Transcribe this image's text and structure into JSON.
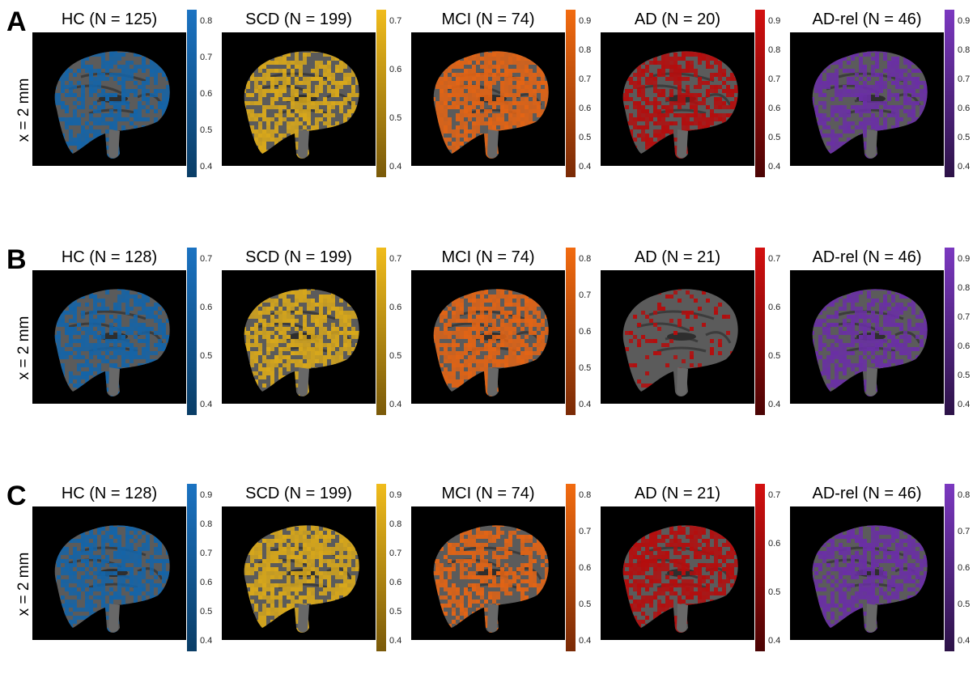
{
  "y_axis_label": "x = 2 mm",
  "rows": [
    {
      "letter": "A",
      "panels": [
        {
          "title": "HC (N = 125)",
          "color": "#1464a8",
          "cbar": [
            "#0a3d66",
            "#1b73c2"
          ],
          "ticks": [
            "0.8",
            "0.7",
            "0.6",
            "0.5",
            "0.4"
          ],
          "density": 0.55
        },
        {
          "title": "SCD (N = 199)",
          "color": "#d9a81a",
          "cbar": [
            "#7a5a0a",
            "#f0bc1c"
          ],
          "ticks": [
            "0.7",
            "0.6",
            "0.5",
            "0.4"
          ],
          "density": 0.6
        },
        {
          "title": "MCI (N = 74)",
          "color": "#e36414",
          "cbar": [
            "#7a2a06",
            "#f26b10"
          ],
          "ticks": [
            "0.9",
            "0.8",
            "0.7",
            "0.6",
            "0.5",
            "0.4"
          ],
          "density": 0.75
        },
        {
          "title": "AD (N = 20)",
          "color": "#b50d0d",
          "cbar": [
            "#4a0404",
            "#d41010"
          ],
          "ticks": [
            "0.9",
            "0.8",
            "0.7",
            "0.6",
            "0.5",
            "0.4"
          ],
          "density": 0.6
        },
        {
          "title": "AD-rel (N = 46)",
          "color": "#6a2fa5",
          "cbar": [
            "#2c1247",
            "#7b38c0"
          ],
          "ticks": [
            "0.9",
            "0.8",
            "0.7",
            "0.6",
            "0.5",
            "0.4"
          ],
          "density": 0.6
        }
      ]
    },
    {
      "letter": "B",
      "panels": [
        {
          "title": "HC (N = 128)",
          "color": "#1464a8",
          "cbar": [
            "#0a3d66",
            "#1b73c2"
          ],
          "ticks": [
            "0.7",
            "0.6",
            "0.5",
            "0.4"
          ],
          "density": 0.55
        },
        {
          "title": "SCD (N = 199)",
          "color": "#d9a81a",
          "cbar": [
            "#7a5a0a",
            "#f0bc1c"
          ],
          "ticks": [
            "0.7",
            "0.6",
            "0.5",
            "0.4"
          ],
          "density": 0.6
        },
        {
          "title": "MCI (N = 74)",
          "color": "#e36414",
          "cbar": [
            "#7a2a06",
            "#f26b10"
          ],
          "ticks": [
            "0.8",
            "0.7",
            "0.6",
            "0.5",
            "0.4"
          ],
          "density": 0.7
        },
        {
          "title": "AD (N = 21)",
          "color": "#b50d0d",
          "cbar": [
            "#4a0404",
            "#d41010"
          ],
          "ticks": [
            "0.7",
            "0.6",
            "0.5",
            "0.4"
          ],
          "density": 0.15
        },
        {
          "title": "AD-rel (N = 46)",
          "color": "#6a2fa5",
          "cbar": [
            "#2c1247",
            "#7b38c0"
          ],
          "ticks": [
            "0.9",
            "0.8",
            "0.7",
            "0.6",
            "0.5",
            "0.4"
          ],
          "density": 0.6
        }
      ]
    },
    {
      "letter": "C",
      "panels": [
        {
          "title": "HC (N = 128)",
          "color": "#1464a8",
          "cbar": [
            "#0a3d66",
            "#1b73c2"
          ],
          "ticks": [
            "0.9",
            "0.8",
            "0.7",
            "0.6",
            "0.5",
            "0.4"
          ],
          "density": 0.6
        },
        {
          "title": "SCD (N = 199)",
          "color": "#d9a81a",
          "cbar": [
            "#7a5a0a",
            "#f0bc1c"
          ],
          "ticks": [
            "0.9",
            "0.8",
            "0.7",
            "0.6",
            "0.5",
            "0.4"
          ],
          "density": 0.7
        },
        {
          "title": "MCI (N = 74)",
          "color": "#e36414",
          "cbar": [
            "#7a2a06",
            "#f26b10"
          ],
          "ticks": [
            "0.8",
            "0.7",
            "0.6",
            "0.5",
            "0.4"
          ],
          "density": 0.55
        },
        {
          "title": "AD (N = 21)",
          "color": "#b50d0d",
          "cbar": [
            "#4a0404",
            "#d41010"
          ],
          "ticks": [
            "0.7",
            "0.6",
            "0.5",
            "0.4"
          ],
          "density": 0.65
        },
        {
          "title": "AD-rel (N = 46)",
          "color": "#6a2fa5",
          "cbar": [
            "#2c1247",
            "#7b38c0"
          ],
          "ticks": [
            "0.8",
            "0.7",
            "0.6",
            "0.5",
            "0.4"
          ],
          "density": 0.65
        }
      ]
    }
  ]
}
